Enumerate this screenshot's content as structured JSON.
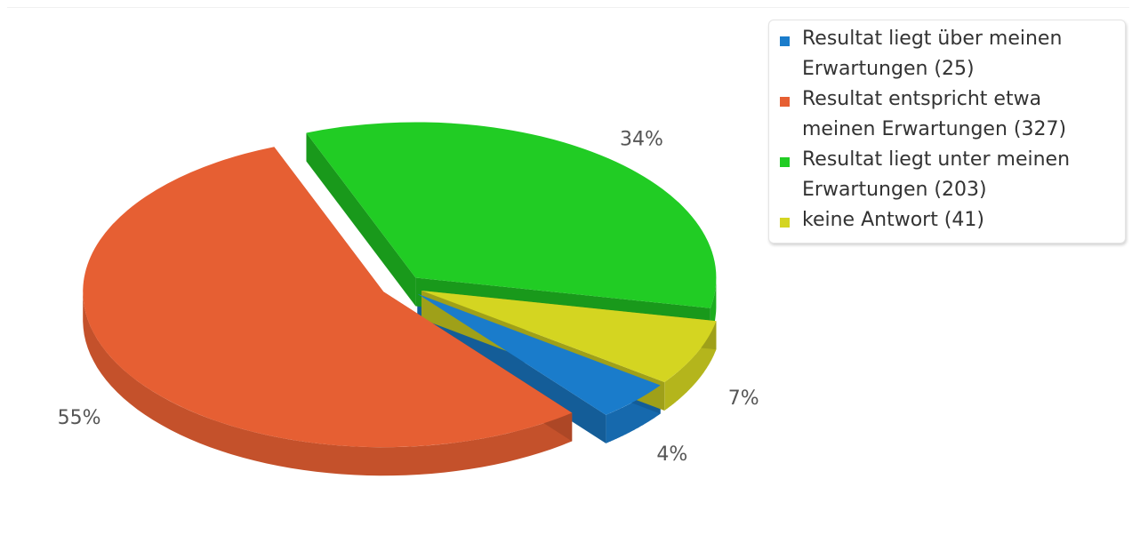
{
  "chart_data": {
    "type": "pie",
    "title": "",
    "series": [
      {
        "label": "Resultat liegt über meinen Erwartungen (25)",
        "count": 25,
        "percent_label": "4%",
        "color": "#1a7ccb"
      },
      {
        "label": "Resultat entspricht etwa meinen Erwartungen (327)",
        "count": 327,
        "percent_label": "55%",
        "color": "#e65f33"
      },
      {
        "label": "Resultat liegt unter meinen Erwartungen (203)",
        "count": 203,
        "percent_label": "34%",
        "color": "#21cc24"
      },
      {
        "label": "keine Antwort (41)",
        "count": 41,
        "percent_label": "7%",
        "color": "#d4d521"
      }
    ],
    "legend_position": "top-right",
    "style": "3d"
  }
}
